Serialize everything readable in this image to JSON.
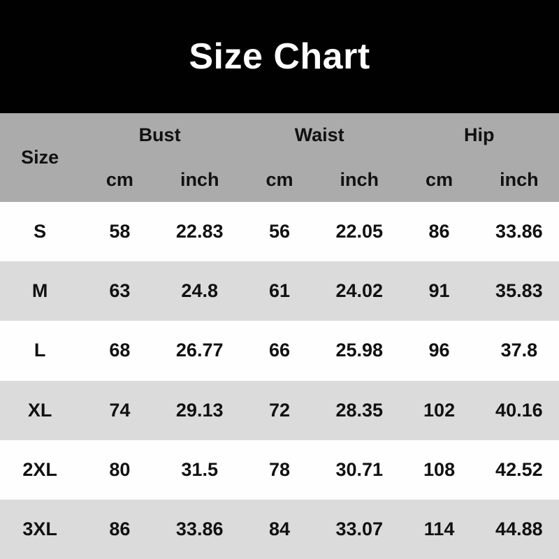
{
  "title": "Size Chart",
  "colors": {
    "title_bg": "#010101",
    "title_text": "#fefefe",
    "header_bg": "#ababab",
    "row_bg": "#fefefe",
    "row_alt_bg": "#dbdbdb",
    "text": "#111111"
  },
  "table": {
    "size_label": "Size",
    "groups": [
      {
        "label": "Bust"
      },
      {
        "label": "Waist"
      },
      {
        "label": "Hip"
      }
    ],
    "unit_labels": [
      "cm",
      "inch",
      "cm",
      "inch",
      "cm",
      "inch"
    ],
    "rows": [
      {
        "size": "S",
        "values": [
          "58",
          "22.83",
          "56",
          "22.05",
          "86",
          "33.86"
        ]
      },
      {
        "size": "M",
        "values": [
          "63",
          "24.8",
          "61",
          "24.02",
          "91",
          "35.83"
        ]
      },
      {
        "size": "L",
        "values": [
          "68",
          "26.77",
          "66",
          "25.98",
          "96",
          "37.8"
        ]
      },
      {
        "size": "XL",
        "values": [
          "74",
          "29.13",
          "72",
          "28.35",
          "102",
          "40.16"
        ]
      },
      {
        "size": "2XL",
        "values": [
          "80",
          "31.5",
          "78",
          "30.71",
          "108",
          "42.52"
        ]
      },
      {
        "size": "3XL",
        "values": [
          "86",
          "33.86",
          "84",
          "33.07",
          "114",
          "44.88"
        ]
      }
    ]
  },
  "chart_data": {
    "type": "table",
    "title": "Size Chart",
    "columns": [
      "Size",
      "Bust cm",
      "Bust inch",
      "Waist cm",
      "Waist inch",
      "Hip cm",
      "Hip inch"
    ],
    "rows": [
      [
        "S",
        58,
        22.83,
        56,
        22.05,
        86,
        33.86
      ],
      [
        "M",
        63,
        24.8,
        61,
        24.02,
        91,
        35.83
      ],
      [
        "L",
        68,
        26.77,
        66,
        25.98,
        96,
        37.8
      ],
      [
        "XL",
        74,
        29.13,
        72,
        28.35,
        102,
        40.16
      ],
      [
        "2XL",
        80,
        31.5,
        78,
        30.71,
        108,
        42.52
      ],
      [
        "3XL",
        86,
        33.86,
        84,
        33.07,
        114,
        44.88
      ]
    ]
  }
}
